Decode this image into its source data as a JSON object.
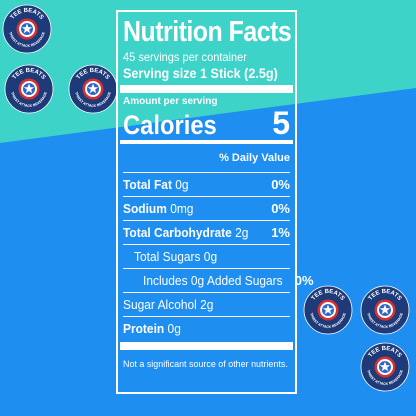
{
  "colors": {
    "teal": "#3ED3C8",
    "blue": "#1E8EF0",
    "logo_dark": "#1E3A78",
    "logo_red": "#D9302F",
    "white": "#FFFFFF"
  },
  "nutrition": {
    "title": "Nutrition Facts",
    "servings": "45 servings per container",
    "serving_size": "Serving size 1 Stick (2.5g)",
    "amount_per_serving": "Amount per serving",
    "calories_label": "Calories",
    "calories_value": "5",
    "daily_value_header": "% Daily Value",
    "rows": [
      {
        "label": "Total Fat",
        "amount": "0g",
        "percent": "0%"
      },
      {
        "label": "Sodium",
        "amount": "0mg",
        "percent": "0%"
      },
      {
        "label": "Total Carbohydrate",
        "amount": "2g",
        "percent": "1%"
      },
      {
        "label": "Total Sugars 0g",
        "percent": ""
      },
      {
        "label": "Includes 0g Added Sugars",
        "percent": "0%"
      },
      {
        "label": "Sugar Alcohol 2g",
        "percent": ""
      },
      {
        "label": "Protein",
        "amount": "0g",
        "percent": ""
      }
    ],
    "footnote": "Not a significant source of other nutrients."
  },
  "logo": {
    "top_text": "TEE BEATS",
    "bottom_text": "THIRST ATTACK BEVERAGE",
    "icon": "star-shield-icon"
  }
}
